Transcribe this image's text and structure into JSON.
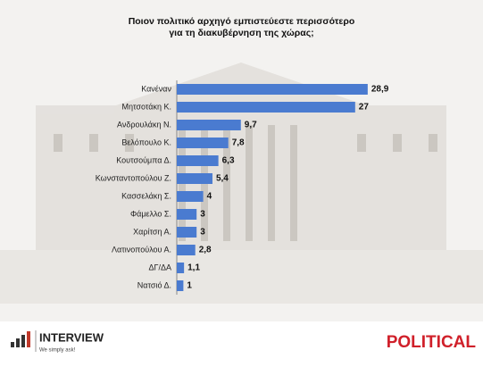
{
  "chart_data": {
    "type": "bar",
    "orientation": "horizontal",
    "title": "Ποιον πολιτικό αρχηγό εμπιστεύεστε περισσότερο\nγια τη διακυβέρνηση της χώρας;",
    "categories": [
      "Κανέναν",
      "Μητσοτάκη Κ.",
      "Ανδρουλάκη Ν.",
      "Βελόπουλο Κ.",
      "Κουτσούμπα Δ.",
      "Κωνσταντοπούλου Ζ.",
      "Κασσελάκη Σ.",
      "Φάμελλο Σ.",
      "Χαρίτση Α.",
      "Λατινοπούλου Α.",
      "ΔΓ/ΔΑ",
      "Νατσιό Δ."
    ],
    "values": [
      28.9,
      27,
      9.7,
      7.8,
      6.3,
      5.4,
      4,
      3,
      3,
      2.8,
      1.1,
      1
    ],
    "value_labels": [
      "28,9",
      "27",
      "9,7",
      "7,8",
      "6,3",
      "5,4",
      "4",
      "3",
      "3",
      "2,8",
      "1,1",
      "1"
    ],
    "color": "#4a7bd0",
    "xlim": [
      0,
      30
    ]
  },
  "logos": {
    "left": "INTERVIEW",
    "tagline": "We simply ask!",
    "right": "POLITICAL"
  }
}
